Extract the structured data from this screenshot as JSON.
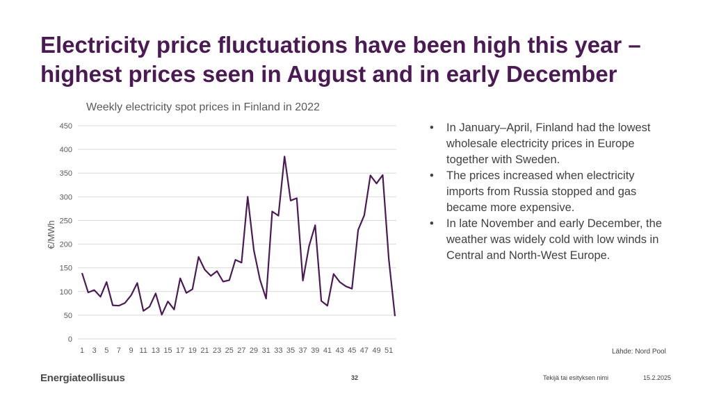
{
  "slide": {
    "title_line1": "Electricity price fluctuations have been high this year –",
    "title_line2": "highest prices seen in August and in early December",
    "bullets": [
      "In January–April, Finland had the lowest wholesale electricity prices in Europe together with Sweden.",
      "The prices increased when electricity imports from Russia stopped and gas became more expensive.",
      "In late November and early December, the weather was widely cold with low winds in Central and North-West Europe."
    ],
    "source": "Lähde: Nord Pool",
    "logo": "Energiateollisuus",
    "page_number": "32",
    "footer_text": "Tekijä tai esityksen nimi",
    "footer_date": "15.2.2025"
  },
  "chart_data": {
    "type": "line",
    "title": "Weekly electricity spot prices in Finland in 2022",
    "xlabel": "",
    "ylabel": "€/MWh",
    "ylim": [
      0,
      450
    ],
    "yticks": [
      0,
      50,
      100,
      150,
      200,
      250,
      300,
      350,
      400,
      450
    ],
    "xticks": [
      1,
      3,
      5,
      7,
      9,
      11,
      13,
      15,
      17,
      19,
      21,
      23,
      25,
      27,
      29,
      31,
      33,
      35,
      37,
      39,
      41,
      43,
      45,
      47,
      49,
      51
    ],
    "grid": true,
    "line_color": "#4b1a55",
    "x": [
      1,
      2,
      3,
      4,
      5,
      6,
      7,
      8,
      9,
      10,
      11,
      12,
      13,
      14,
      15,
      16,
      17,
      18,
      19,
      20,
      21,
      22,
      23,
      24,
      25,
      26,
      27,
      28,
      29,
      30,
      31,
      32,
      33,
      34,
      35,
      36,
      37,
      38,
      39,
      40,
      41,
      42,
      43,
      44,
      45,
      46,
      47,
      48,
      49,
      50,
      51,
      52
    ],
    "values": [
      139,
      98,
      103,
      89,
      120,
      71,
      70,
      76,
      92,
      118,
      59,
      68,
      96,
      51,
      79,
      62,
      128,
      97,
      105,
      173,
      146,
      133,
      143,
      121,
      124,
      167,
      161,
      300,
      187,
      125,
      85,
      269,
      260,
      385,
      292,
      297,
      123,
      196,
      240,
      80,
      70,
      137,
      120,
      111,
      106,
      230,
      261,
      345,
      328,
      346,
      168,
      48
    ]
  }
}
